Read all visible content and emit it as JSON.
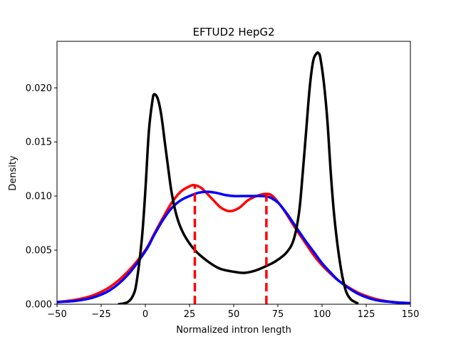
{
  "chart_data": {
    "type": "line",
    "title": "EFTUD2 HepG2",
    "xlabel": "Normalized intron length",
    "ylabel": "Density",
    "xlim": [
      -50,
      150
    ],
    "ylim": [
      0,
      0.0243
    ],
    "x_ticks": [
      -50,
      -25,
      0,
      25,
      50,
      75,
      100,
      125,
      150
    ],
    "x_tick_labels": [
      "−50",
      "−25",
      "0",
      "25",
      "50",
      "75",
      "100",
      "125",
      "150"
    ],
    "y_ticks": [
      0.0,
      0.005,
      0.01,
      0.015,
      0.02
    ],
    "y_tick_labels": [
      "0.000",
      "0.005",
      "0.010",
      "0.015",
      "0.020"
    ],
    "grid": false,
    "series": [
      {
        "color": "#ff0000",
        "x": [
          -50,
          -40,
          -30,
          -20,
          -10,
          0,
          5,
          10,
          15,
          20,
          25,
          28,
          32,
          38,
          43,
          48,
          53,
          58,
          63,
          68,
          72,
          78,
          85,
          90,
          95,
          100,
          105,
          110,
          120,
          130,
          140,
          150
        ],
        "y": [
          0.0002,
          0.0004,
          0.0008,
          0.0016,
          0.003,
          0.005,
          0.0065,
          0.008,
          0.0094,
          0.0104,
          0.0109,
          0.011,
          0.0107,
          0.0097,
          0.0089,
          0.0086,
          0.0089,
          0.0096,
          0.01,
          0.0102,
          0.01,
          0.0088,
          0.007,
          0.0058,
          0.0046,
          0.0036,
          0.0028,
          0.0021,
          0.0011,
          0.0005,
          0.0002,
          0.0001
        ]
      },
      {
        "color": "#0000ff",
        "x": [
          -50,
          -40,
          -30,
          -20,
          -10,
          0,
          5,
          10,
          15,
          20,
          25,
          30,
          35,
          40,
          45,
          50,
          55,
          60,
          65,
          70,
          75,
          80,
          85,
          90,
          95,
          100,
          105,
          110,
          120,
          130,
          140,
          150
        ],
        "y": [
          0.0002,
          0.0003,
          0.0006,
          0.0013,
          0.0027,
          0.0049,
          0.0064,
          0.0078,
          0.0089,
          0.0096,
          0.01,
          0.0103,
          0.0104,
          0.0103,
          0.0101,
          0.01,
          0.01,
          0.01,
          0.01,
          0.0099,
          0.0094,
          0.0084,
          0.0072,
          0.006,
          0.0049,
          0.0038,
          0.0029,
          0.0021,
          0.001,
          0.0004,
          0.0002,
          0.0001
        ]
      },
      {
        "color": "#000000",
        "x": [
          -15,
          -10,
          -7,
          -5,
          -2,
          0,
          2,
          4,
          5,
          7,
          9,
          11,
          13,
          15,
          18,
          22,
          28,
          35,
          42,
          50,
          56,
          62,
          68,
          74,
          80,
          84,
          87,
          89,
          91,
          93,
          95,
          97,
          98,
          99,
          101,
          103,
          105,
          107,
          110,
          113,
          116,
          120
        ],
        "y": [
          0.0,
          0.0002,
          0.0008,
          0.002,
          0.006,
          0.0105,
          0.016,
          0.0188,
          0.0194,
          0.019,
          0.0175,
          0.015,
          0.0125,
          0.0102,
          0.008,
          0.0064,
          0.005,
          0.004,
          0.0033,
          0.003,
          0.0029,
          0.0031,
          0.0035,
          0.004,
          0.0048,
          0.006,
          0.0085,
          0.012,
          0.016,
          0.02,
          0.0225,
          0.0232,
          0.0232,
          0.0228,
          0.0205,
          0.017,
          0.012,
          0.008,
          0.004,
          0.0015,
          0.0005,
          0.0001
        ]
      }
    ],
    "vlines": [
      {
        "x": 28,
        "y": 0.011,
        "color": "#ff0000",
        "style": "dashed"
      },
      {
        "x": 68.5,
        "y": 0.0101,
        "color": "#ff0000",
        "style": "dashed"
      }
    ]
  }
}
